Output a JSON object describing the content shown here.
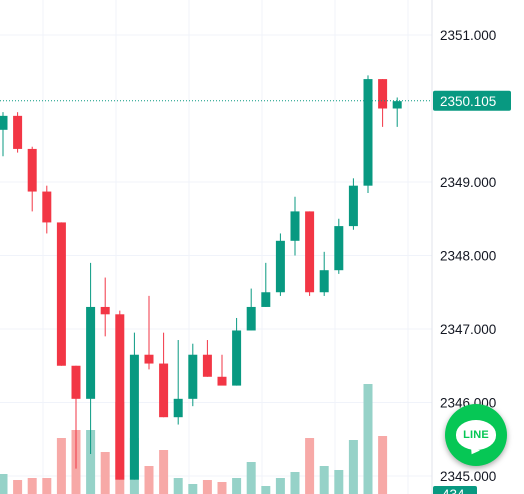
{
  "chart_data": {
    "type": "candlestick",
    "title": "",
    "xlabel": "",
    "ylabel": "",
    "ylim": [
      2344.85,
      2351.45
    ],
    "y_ticks": [
      "2351.000",
      "2349.000",
      "2348.000",
      "2347.000",
      "2346.000",
      "2345.000"
    ],
    "axis_position": "right",
    "grid": true,
    "current_price": "2350.105",
    "volume_axis_label": "434",
    "colors": {
      "up": "#089981",
      "down": "#f23645",
      "volume_up": "#96d2c8",
      "volume_down": "#f7a9a7",
      "price_tag": "#089981",
      "price_line": "#089981",
      "grid": "#f0f3fa"
    },
    "candles": [
      {
        "o": 2349.71,
        "h": 2349.95,
        "l": 2349.35,
        "c": 2349.9,
        "v": 0.5
      },
      {
        "o": 2349.9,
        "h": 2349.95,
        "l": 2349.4,
        "c": 2349.45,
        "v": 0.35
      },
      {
        "o": 2349.45,
        "h": 2349.48,
        "l": 2348.6,
        "c": 2348.87,
        "v": 0.4
      },
      {
        "o": 2348.87,
        "h": 2348.95,
        "l": 2348.3,
        "c": 2348.45,
        "v": 0.4
      },
      {
        "o": 2348.45,
        "h": 2348.45,
        "l": 2346.5,
        "c": 2346.5,
        "v": 1.4
      },
      {
        "o": 2346.5,
        "h": 2346.5,
        "l": 2345.1,
        "c": 2346.05,
        "v": 1.6
      },
      {
        "o": 2346.05,
        "h": 2347.9,
        "l": 2345.3,
        "c": 2347.3,
        "v": 1.6
      },
      {
        "o": 2347.3,
        "h": 2347.7,
        "l": 2346.9,
        "c": 2347.2,
        "v": 1.05
      },
      {
        "o": 2347.2,
        "h": 2347.25,
        "l": 2344.95,
        "c": 2344.95,
        "v": 2.3
      },
      {
        "o": 2344.95,
        "h": 2346.95,
        "l": 2344.95,
        "c": 2346.65,
        "v": 1.4
      },
      {
        "o": 2346.65,
        "h": 2347.45,
        "l": 2346.45,
        "c": 2346.53,
        "v": 0.7
      },
      {
        "o": 2346.53,
        "h": 2346.95,
        "l": 2345.8,
        "c": 2345.8,
        "v": 1.1
      },
      {
        "o": 2345.8,
        "h": 2346.85,
        "l": 2345.7,
        "c": 2346.05,
        "v": 0.4
      },
      {
        "o": 2346.05,
        "h": 2346.8,
        "l": 2345.95,
        "c": 2346.65,
        "v": 0.25
      },
      {
        "o": 2346.65,
        "h": 2346.85,
        "l": 2346.35,
        "c": 2346.35,
        "v": 0.35
      },
      {
        "o": 2346.35,
        "h": 2346.65,
        "l": 2346.25,
        "c": 2346.23,
        "v": 0.3
      },
      {
        "o": 2346.23,
        "h": 2347.15,
        "l": 2346.23,
        "c": 2346.98,
        "v": 0.4
      },
      {
        "o": 2346.98,
        "h": 2347.55,
        "l": 2346.98,
        "c": 2347.3,
        "v": 0.8
      },
      {
        "o": 2347.3,
        "h": 2347.9,
        "l": 2347.3,
        "c": 2347.5,
        "v": 0.2
      },
      {
        "o": 2347.5,
        "h": 2348.3,
        "l": 2347.45,
        "c": 2348.2,
        "v": 0.4
      },
      {
        "o": 2348.2,
        "h": 2348.8,
        "l": 2348.0,
        "c": 2348.6,
        "v": 0.55
      },
      {
        "o": 2348.6,
        "h": 2348.6,
        "l": 2347.45,
        "c": 2347.5,
        "v": 1.4
      },
      {
        "o": 2347.5,
        "h": 2348.05,
        "l": 2347.45,
        "c": 2347.8,
        "v": 0.7
      },
      {
        "o": 2347.8,
        "h": 2348.5,
        "l": 2347.75,
        "c": 2348.4,
        "v": 0.6
      },
      {
        "o": 2348.4,
        "h": 2349.05,
        "l": 2348.35,
        "c": 2348.95,
        "v": 1.35
      },
      {
        "o": 2348.95,
        "h": 2350.45,
        "l": 2348.85,
        "c": 2350.4,
        "v": 2.75
      },
      {
        "o": 2350.4,
        "h": 2350.4,
        "l": 2349.75,
        "c": 2350.0,
        "v": 1.45
      },
      {
        "o": 2350.0,
        "h": 2350.15,
        "l": 2349.75,
        "c": 2350.1,
        "v": 0
      }
    ]
  },
  "widget": {
    "line_label": "LINE"
  }
}
